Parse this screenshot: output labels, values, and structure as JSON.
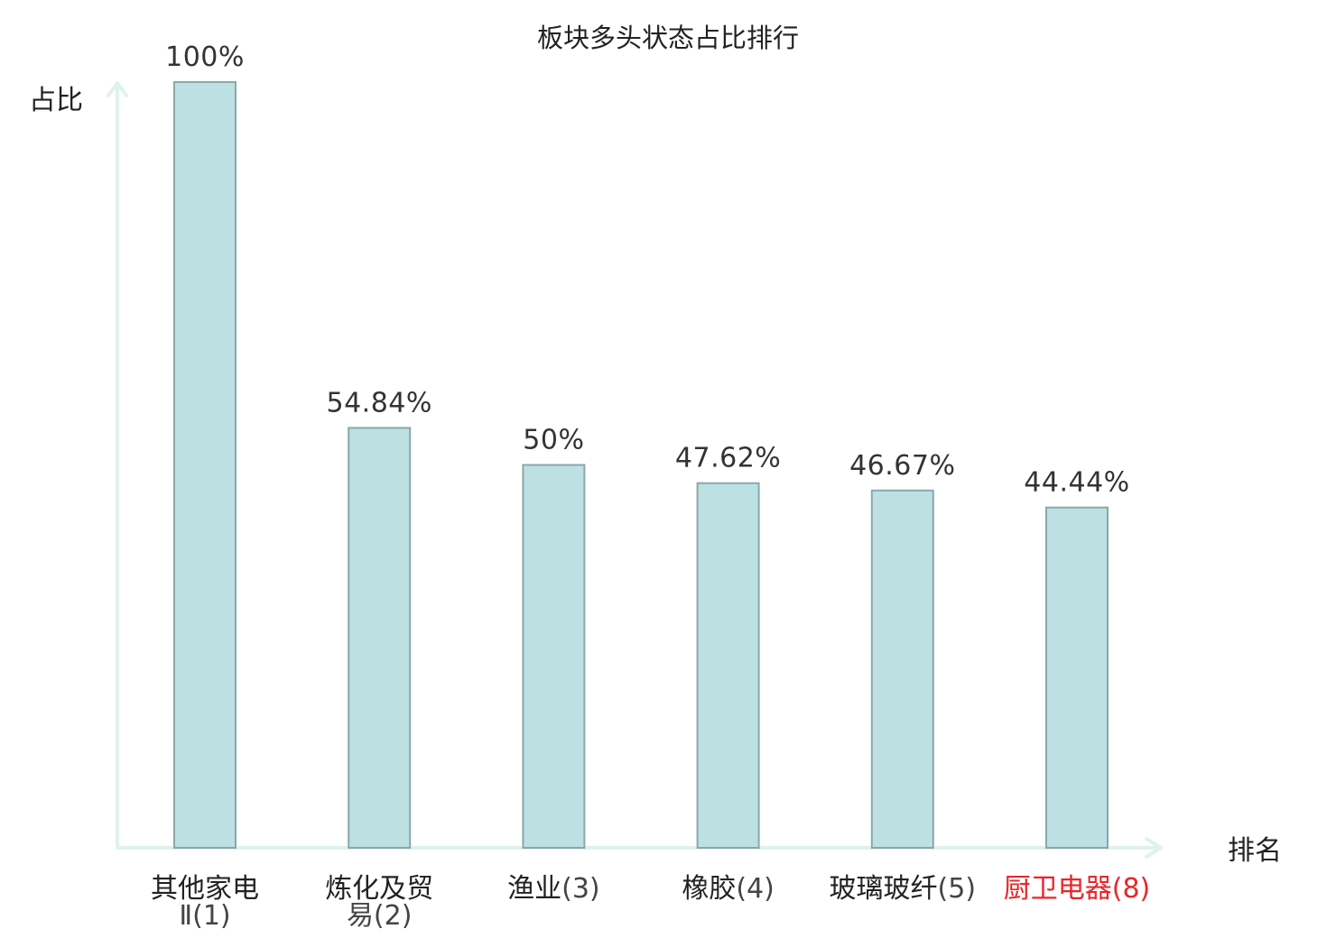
{
  "chart_data": {
    "type": "bar",
    "title": "板块多头状态占比排行",
    "xlabel": "排名",
    "ylabel": "占比",
    "ylim": [
      0,
      100
    ],
    "value_unit": "%",
    "categories": [
      {
        "name_lines": [
          "其他家电"
        ],
        "rank": "Ⅱ(1)",
        "highlight": false
      },
      {
        "name_lines": [
          "炼化及贸"
        ],
        "rank": "易(2)",
        "highlight": false
      },
      {
        "name_lines": [
          "渔业"
        ],
        "rank": "(3)",
        "highlight": false
      },
      {
        "name_lines": [
          "橡胶"
        ],
        "rank": "(4)",
        "highlight": false
      },
      {
        "name_lines": [
          "玻璃玻纤"
        ],
        "rank": "(5)",
        "highlight": false
      },
      {
        "name_lines": [
          "厨卫电器"
        ],
        "rank": "(8)",
        "highlight": true
      }
    ],
    "values": [
      100,
      54.84,
      50,
      47.62,
      46.67,
      44.44
    ],
    "value_labels": [
      "100%",
      "54.84%",
      "50%",
      "47.62%",
      "46.67%",
      "44.44%"
    ],
    "grid": false,
    "legend": "none"
  },
  "colors": {
    "bar_fill": "#bde0e3",
    "bar_stroke": "#8aa8ab",
    "axis": "#dff2ee",
    "text": "#222222",
    "rank_text": "#444444",
    "highlight": "#e8262a"
  }
}
